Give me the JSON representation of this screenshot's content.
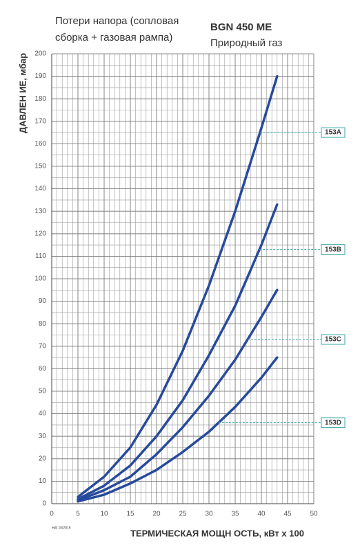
{
  "chart_data": {
    "type": "line",
    "title_lines": [
      "Потери напора (сопловая",
      "сборка + газовая рампа)"
    ],
    "model": "BGN 450 ME",
    "fuel": "Природный газ",
    "y_label": "ДАВЛЕН ИЕ, мбар",
    "x_label": "ТЕРМИЧЕСКАЯ МОЩН ОСТЬ, кВт x 100",
    "edition": "edit 10/2015",
    "x": [
      5,
      10,
      15,
      20,
      25,
      30,
      35,
      40,
      43
    ],
    "series": [
      {
        "name": "153A",
        "color": "#274a9c",
        "values": [
          3,
          12,
          25,
          44,
          68,
          97,
          130,
          167,
          190
        ],
        "label_y": 165
      },
      {
        "name": "153B",
        "color": "#274a9c",
        "values": [
          2,
          8,
          17,
          30,
          46,
          66,
          88,
          115,
          133
        ],
        "label_y": 113
      },
      {
        "name": "153C",
        "color": "#274a9c",
        "values": [
          1.5,
          6,
          12,
          22,
          34,
          48,
          64,
          83,
          95
        ],
        "label_y": 73
      },
      {
        "name": "153D",
        "color": "#274a9c",
        "values": [
          1,
          4,
          9,
          15,
          23,
          32,
          43,
          56,
          65
        ],
        "label_y": 36
      }
    ],
    "label_color": "#3aa6a6",
    "xlim": [
      0,
      50
    ],
    "ylim": [
      0,
      200
    ],
    "xticks": [
      0,
      5,
      10,
      15,
      20,
      25,
      30,
      35,
      40,
      45,
      50
    ],
    "yticks": [
      0,
      10,
      20,
      30,
      40,
      50,
      60,
      70,
      80,
      90,
      100,
      110,
      120,
      130,
      140,
      150,
      160,
      170,
      180,
      190,
      200
    ],
    "x_minor_step": 1,
    "y_minor_step": 5,
    "grid": true
  }
}
